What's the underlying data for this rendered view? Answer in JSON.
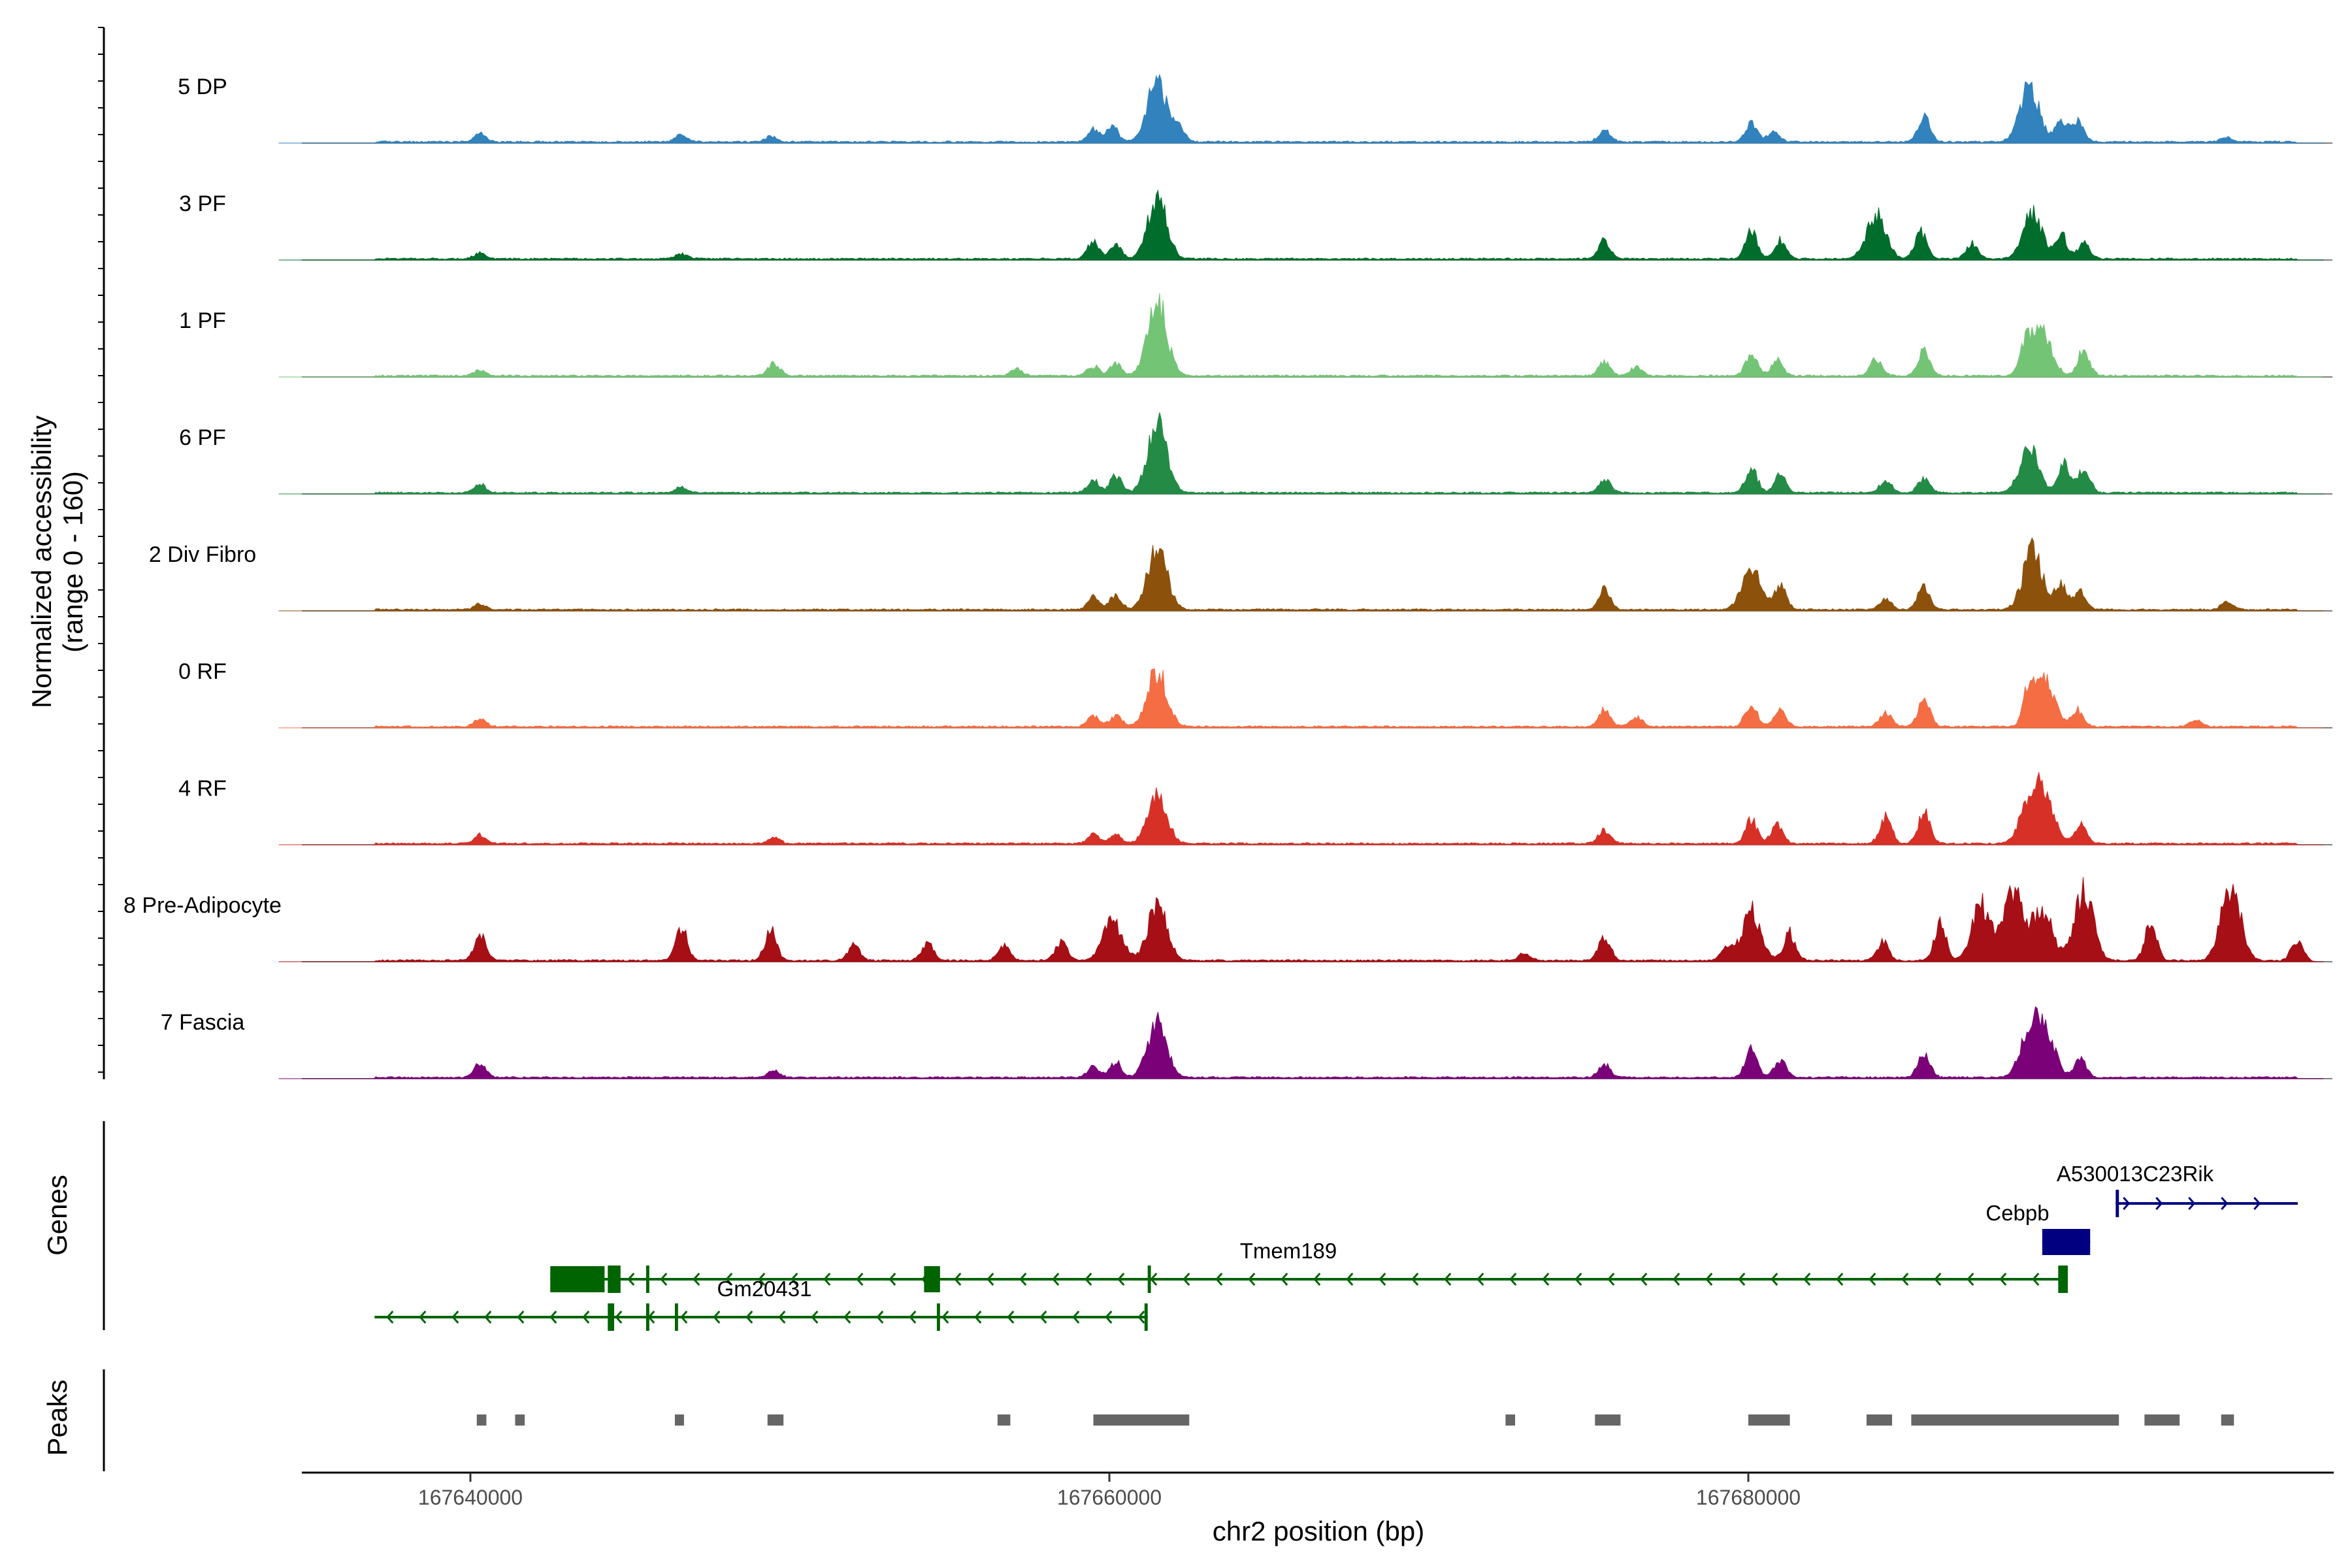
{
  "chart_data": {
    "type": "area",
    "title": "",
    "ylabel_line1": "Normalized accessibility",
    "ylabel_line2": "(range 0 - 160)",
    "xlabel": "chr2 position (bp)",
    "xlim": [
      167634000,
      167698000
    ],
    "x_ticks": [
      167640000,
      167660000,
      167680000
    ],
    "x_tick_labels": [
      "167640000",
      "167660000",
      "167680000"
    ],
    "y_range": [
      0,
      160
    ],
    "series": [
      {
        "name": "5 DP",
        "color": "#3182bd",
        "peaks": [
          [
            167640300,
            14
          ],
          [
            167646600,
            12
          ],
          [
            167649400,
            9
          ],
          [
            167659500,
            20
          ],
          [
            167660100,
            25
          ],
          [
            167661500,
            100
          ],
          [
            167662200,
            22
          ],
          [
            167675500,
            18
          ],
          [
            167680100,
            30
          ],
          [
            167680800,
            16
          ],
          [
            167685500,
            40
          ],
          [
            167688800,
            90
          ],
          [
            167689800,
            35
          ],
          [
            167690300,
            35
          ],
          [
            167695000,
            8
          ]
        ]
      },
      {
        "name": "3 PF",
        "color": "#006d2c",
        "peaks": [
          [
            167640300,
            9
          ],
          [
            167646600,
            9
          ],
          [
            167659500,
            28
          ],
          [
            167660200,
            22
          ],
          [
            167661500,
            100
          ],
          [
            167675500,
            30
          ],
          [
            167680100,
            45
          ],
          [
            167681000,
            30
          ],
          [
            167684000,
            75
          ],
          [
            167685400,
            45
          ],
          [
            167687000,
            25
          ],
          [
            167688900,
            75
          ],
          [
            167689800,
            40
          ],
          [
            167690500,
            25
          ]
        ]
      },
      {
        "name": "1 PF",
        "color": "#74c476",
        "peaks": [
          [
            167640300,
            9
          ],
          [
            167649500,
            20
          ],
          [
            167657100,
            12
          ],
          [
            167659500,
            16
          ],
          [
            167660200,
            20
          ],
          [
            167661500,
            120
          ],
          [
            167675500,
            22
          ],
          [
            167676500,
            16
          ],
          [
            167680100,
            36
          ],
          [
            167680900,
            26
          ],
          [
            167684000,
            30
          ],
          [
            167685500,
            45
          ],
          [
            167688700,
            50
          ],
          [
            167689200,
            70
          ],
          [
            167690500,
            42
          ]
        ]
      },
      {
        "name": "6 PF",
        "color": "#238b45",
        "peaks": [
          [
            167640300,
            14
          ],
          [
            167646600,
            10
          ],
          [
            167659500,
            20
          ],
          [
            167660200,
            28
          ],
          [
            167661500,
            115
          ],
          [
            167675500,
            22
          ],
          [
            167680100,
            40
          ],
          [
            167681000,
            30
          ],
          [
            167684300,
            20
          ],
          [
            167685500,
            24
          ],
          [
            167688800,
            70
          ],
          [
            167689900,
            45
          ],
          [
            167690500,
            42
          ]
        ]
      },
      {
        "name": "2 Div Fibro",
        "color": "#8c510a",
        "peaks": [
          [
            167640300,
            9
          ],
          [
            167659500,
            20
          ],
          [
            167660200,
            24
          ],
          [
            167661500,
            100
          ],
          [
            167675500,
            32
          ],
          [
            167680100,
            66
          ],
          [
            167681000,
            38
          ],
          [
            167684300,
            18
          ],
          [
            167685500,
            40
          ],
          [
            167688900,
            100
          ],
          [
            167689800,
            45
          ],
          [
            167690400,
            30
          ],
          [
            167695000,
            14
          ]
        ]
      },
      {
        "name": "0 RF",
        "color": "#f46d43",
        "peaks": [
          [
            167640300,
            12
          ],
          [
            167659500,
            16
          ],
          [
            167660200,
            18
          ],
          [
            167661500,
            92
          ],
          [
            167675500,
            28
          ],
          [
            167676500,
            16
          ],
          [
            167680100,
            40
          ],
          [
            167681000,
            30
          ],
          [
            167684300,
            24
          ],
          [
            167685500,
            45
          ],
          [
            167688800,
            60
          ],
          [
            167689300,
            75
          ],
          [
            167690300,
            28
          ],
          [
            167694000,
            10
          ]
        ]
      },
      {
        "name": "4 RF",
        "color": "#d73027",
        "peaks": [
          [
            167640300,
            14
          ],
          [
            167649500,
            10
          ],
          [
            167659500,
            14
          ],
          [
            167660200,
            14
          ],
          [
            167661500,
            78
          ],
          [
            167675500,
            22
          ],
          [
            167680100,
            40
          ],
          [
            167680900,
            30
          ],
          [
            167684300,
            45
          ],
          [
            167685500,
            50
          ],
          [
            167688800,
            70
          ],
          [
            167689300,
            70
          ],
          [
            167690400,
            30
          ]
        ]
      },
      {
        "name": "8 Pre-Adipocyte",
        "color": "#a50f15",
        "peaks": [
          [
            167640300,
            40
          ],
          [
            167646600,
            55
          ],
          [
            167649400,
            50
          ],
          [
            167652000,
            25
          ],
          [
            167654300,
            30
          ],
          [
            167656700,
            25
          ],
          [
            167658500,
            30
          ],
          [
            167660100,
            65
          ],
          [
            167661500,
            90
          ],
          [
            167673000,
            12
          ],
          [
            167675500,
            40
          ],
          [
            167679300,
            20
          ],
          [
            167680100,
            80
          ],
          [
            167681300,
            45
          ],
          [
            167684200,
            30
          ],
          [
            167686000,
            60
          ],
          [
            167687300,
            90
          ],
          [
            167688300,
            110
          ],
          [
            167689200,
            85
          ],
          [
            167690500,
            115
          ],
          [
            167692600,
            60
          ],
          [
            167695100,
            125
          ],
          [
            167697200,
            35
          ]
        ]
      },
      {
        "name": "7 Fascia",
        "color": "#7a0177",
        "peaks": [
          [
            167640300,
            22
          ],
          [
            167649500,
            10
          ],
          [
            167659500,
            18
          ],
          [
            167660200,
            25
          ],
          [
            167661500,
            90
          ],
          [
            167675500,
            22
          ],
          [
            167680100,
            48
          ],
          [
            167681000,
            28
          ],
          [
            167685500,
            40
          ],
          [
            167688800,
            70
          ],
          [
            167689300,
            75
          ],
          [
            167690400,
            30
          ]
        ]
      }
    ],
    "genes": [
      {
        "name": "A530013C23Rik",
        "color": "#000080",
        "strand": "+",
        "start": 167691500,
        "end": 167697200,
        "exons": [
          [
            167691500,
            167691600
          ]
        ]
      },
      {
        "name": "Cebpb",
        "color": "#000080",
        "strand": "+",
        "start": 167689200,
        "end": 167690700,
        "exons": [
          [
            167689200,
            167690700
          ]
        ]
      },
      {
        "name": "Tmem189",
        "color": "#006400",
        "strand": "-",
        "start": 167642500,
        "end": 167690000,
        "exons": [
          [
            167642500,
            167644200
          ],
          [
            167644300,
            167644700
          ],
          [
            167645500,
            167645600
          ],
          [
            167654200,
            167654700
          ],
          [
            167661200,
            167661300
          ],
          [
            167689700,
            167690000
          ]
        ]
      },
      {
        "name": "Gm20431",
        "color": "#006400",
        "strand": "-",
        "start": 167637000,
        "end": 167661200,
        "exons": [
          [
            167644300,
            167644500
          ],
          [
            167645500,
            167645600
          ],
          [
            167646400,
            167646500
          ],
          [
            167654600,
            167654700
          ],
          [
            167661100,
            167661200
          ]
        ]
      }
    ],
    "peaks_track": [
      [
        167640200,
        167640500
      ],
      [
        167641400,
        167641700
      ],
      [
        167646400,
        167646650
      ],
      [
        167649300,
        167649800
      ],
      [
        167656500,
        167656900
      ],
      [
        167659500,
        167662500
      ],
      [
        167672400,
        167672700
      ],
      [
        167675200,
        167676000
      ],
      [
        167680000,
        167681300
      ],
      [
        167683700,
        167684500
      ],
      [
        167685100,
        167691600
      ],
      [
        167692400,
        167693500
      ],
      [
        167694800,
        167695200
      ]
    ],
    "track_labels": {
      "genes": "Genes",
      "peaks": "Peaks"
    }
  }
}
